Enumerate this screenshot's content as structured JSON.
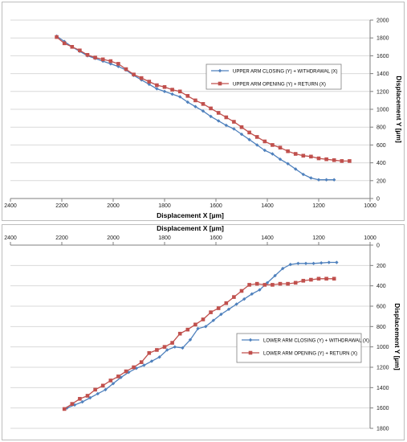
{
  "chart_data": [
    {
      "type": "line",
      "title": "",
      "xlabel": "Displacement X [µm]",
      "ylabel": "Displacement Y [µm]",
      "x_reversed": true,
      "y_reversed": false,
      "xlim": [
        2400,
        1000
      ],
      "ylim": [
        0,
        2000
      ],
      "x_ticks": [
        "2400",
        "2200",
        "2000",
        "1800",
        "1600",
        "1400",
        "1200",
        "1000"
      ],
      "y_ticks": [
        "0",
        "200",
        "400",
        "600",
        "800",
        "1000",
        "1200",
        "1400",
        "1600",
        "1800",
        "2000"
      ],
      "grid": "horizontal",
      "legend_position": "center-right",
      "series": [
        {
          "name": "UPPER ARM CLOSING (Y) + WITHDRAWAL (X)",
          "color": "#4f81bd",
          "marker": "diamond",
          "x": [
            2220,
            2190,
            2160,
            2130,
            2100,
            2070,
            2040,
            2010,
            1980,
            1950,
            1920,
            1890,
            1860,
            1830,
            1800,
            1770,
            1740,
            1710,
            1680,
            1650,
            1620,
            1590,
            1560,
            1530,
            1500,
            1470,
            1440,
            1410,
            1380,
            1350,
            1320,
            1290,
            1260,
            1230,
            1200,
            1170,
            1140
          ],
          "y": [
            1820,
            1760,
            1700,
            1650,
            1600,
            1570,
            1540,
            1510,
            1480,
            1440,
            1380,
            1330,
            1280,
            1230,
            1200,
            1170,
            1140,
            1080,
            1030,
            980,
            920,
            870,
            820,
            780,
            720,
            660,
            600,
            540,
            500,
            440,
            390,
            330,
            270,
            230,
            210,
            210,
            210
          ]
        },
        {
          "name": "UPPER ARM OPENING (Y) + RETURN (X)",
          "color": "#c0504d",
          "marker": "square",
          "x": [
            2220,
            2190,
            2160,
            2130,
            2100,
            2070,
            2040,
            2010,
            1980,
            1950,
            1920,
            1890,
            1860,
            1830,
            1800,
            1770,
            1740,
            1710,
            1680,
            1650,
            1620,
            1590,
            1560,
            1530,
            1500,
            1470,
            1440,
            1410,
            1380,
            1350,
            1320,
            1290,
            1260,
            1230,
            1200,
            1170,
            1140,
            1110,
            1080
          ],
          "y": [
            1810,
            1740,
            1700,
            1660,
            1610,
            1580,
            1560,
            1540,
            1510,
            1450,
            1390,
            1350,
            1310,
            1270,
            1250,
            1220,
            1200,
            1150,
            1100,
            1060,
            1010,
            960,
            910,
            860,
            800,
            740,
            690,
            640,
            600,
            570,
            530,
            500,
            480,
            470,
            450,
            440,
            430,
            420,
            420
          ]
        }
      ]
    },
    {
      "type": "line",
      "title": "",
      "xlabel": "Displacement X [µm]",
      "ylabel": "Displacement Y [µm]",
      "x_reversed": true,
      "y_reversed": true,
      "xlim": [
        2400,
        1000
      ],
      "ylim": [
        0,
        1800
      ],
      "x_ticks": [
        "2400",
        "2200",
        "2000",
        "1800",
        "1600",
        "1400",
        "1200",
        "1000"
      ],
      "y_ticks": [
        "0",
        "200",
        "400",
        "600",
        "800",
        "1000",
        "1200",
        "1400",
        "1600",
        "1800"
      ],
      "grid": "horizontal",
      "legend_position": "bottom-right",
      "series": [
        {
          "name": "LOWER ARM CLOSING (Y) + WITHDRAWAL (X)",
          "color": "#4f81bd",
          "marker": "diamond",
          "x": [
            2180,
            2150,
            2120,
            2090,
            2060,
            2030,
            2000,
            1970,
            1940,
            1910,
            1880,
            1850,
            1820,
            1790,
            1760,
            1730,
            1700,
            1670,
            1640,
            1610,
            1580,
            1550,
            1520,
            1490,
            1460,
            1430,
            1400,
            1370,
            1340,
            1310,
            1280,
            1250,
            1220,
            1190,
            1160,
            1130
          ],
          "y": [
            1600,
            1570,
            1540,
            1500,
            1460,
            1420,
            1360,
            1300,
            1250,
            1210,
            1180,
            1140,
            1100,
            1030,
            1000,
            1010,
            930,
            820,
            800,
            740,
            680,
            630,
            580,
            530,
            480,
            440,
            370,
            300,
            230,
            190,
            180,
            180,
            180,
            175,
            170,
            170
          ]
        },
        {
          "name": "LOWER ARM OPENING (Y) + RETURN (X)",
          "color": "#c0504d",
          "marker": "square",
          "x": [
            2190,
            2160,
            2130,
            2100,
            2070,
            2040,
            2010,
            1980,
            1950,
            1920,
            1890,
            1860,
            1830,
            1800,
            1770,
            1740,
            1710,
            1680,
            1650,
            1620,
            1590,
            1560,
            1530,
            1500,
            1470,
            1440,
            1410,
            1380,
            1350,
            1320,
            1290,
            1260,
            1230,
            1200,
            1170,
            1140
          ],
          "y": [
            1610,
            1560,
            1510,
            1480,
            1420,
            1380,
            1330,
            1290,
            1240,
            1200,
            1150,
            1060,
            1030,
            1000,
            960,
            870,
            830,
            780,
            730,
            660,
            620,
            570,
            510,
            450,
            390,
            380,
            390,
            390,
            380,
            380,
            370,
            350,
            340,
            330,
            330,
            330
          ]
        }
      ]
    }
  ]
}
